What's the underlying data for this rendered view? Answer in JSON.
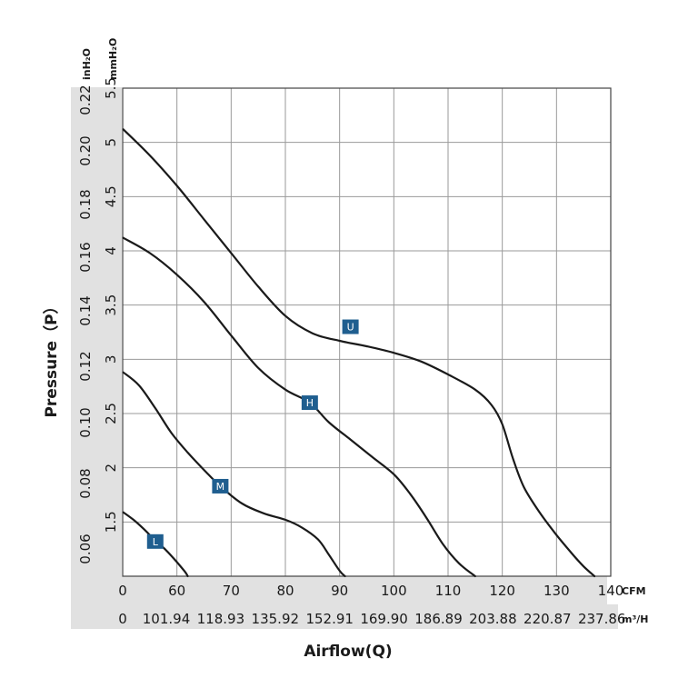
{
  "chart_data": {
    "type": "line",
    "xlabel": "Airflow(Q)",
    "ylabel": "Pressure（P）",
    "x_unit_primary": "CFM",
    "x_unit_secondary": "m³/H",
    "y_unit_outer": "inH₂O",
    "y_unit_inner": "mmH₂O",
    "x_range_cfm": [
      50,
      140
    ],
    "y_range_mmh2o": [
      1.0,
      5.5
    ],
    "grid": true,
    "x_ticks_primary": [
      "0",
      "60",
      "70",
      "80",
      "90",
      "100",
      "110",
      "120",
      "130",
      "140"
    ],
    "x_ticks_secondary": [
      "0",
      "101.94",
      "118.93",
      "135.92",
      "152.91",
      "169.90",
      "186.89",
      "203.88",
      "220.87",
      "237.86"
    ],
    "y_ticks_inner": [
      "1.5",
      "2",
      "2.5",
      "3",
      "3.5",
      "4",
      "4.5",
      "5",
      "5.5"
    ],
    "y_ticks_outer": [
      "0.06",
      "0.08",
      "0.10",
      "0.12",
      "0.14",
      "0.16",
      "0.18",
      "0.20",
      "0.22"
    ],
    "series": [
      {
        "name": "U",
        "color": "#1a1a1a",
        "marker_at": [
          92,
          3.3
        ],
        "points": [
          [
            50.1,
            5.12
          ],
          [
            55,
            4.88
          ],
          [
            60,
            4.6
          ],
          [
            65,
            4.29
          ],
          [
            70,
            3.98
          ],
          [
            75,
            3.67
          ],
          [
            80,
            3.4
          ],
          [
            85,
            3.24
          ],
          [
            90,
            3.17
          ],
          [
            95,
            3.12
          ],
          [
            100,
            3.06
          ],
          [
            105,
            2.98
          ],
          [
            110,
            2.86
          ],
          [
            115,
            2.72
          ],
          [
            118,
            2.58
          ],
          [
            120,
            2.4
          ],
          [
            122,
            2.08
          ],
          [
            124,
            1.82
          ],
          [
            127,
            1.58
          ],
          [
            130,
            1.38
          ],
          [
            133,
            1.2
          ],
          [
            135,
            1.09
          ],
          [
            137,
            1.0
          ]
        ]
      },
      {
        "name": "H",
        "color": "#1a1a1a",
        "marker_at": [
          84.5,
          2.6
        ],
        "points": [
          [
            50.1,
            4.12
          ],
          [
            55,
            3.98
          ],
          [
            60,
            3.78
          ],
          [
            65,
            3.53
          ],
          [
            70,
            3.22
          ],
          [
            75,
            2.92
          ],
          [
            80,
            2.72
          ],
          [
            84.5,
            2.6
          ],
          [
            88,
            2.42
          ],
          [
            92,
            2.26
          ],
          [
            96,
            2.1
          ],
          [
            100,
            1.94
          ],
          [
            103,
            1.76
          ],
          [
            106,
            1.54
          ],
          [
            109,
            1.3
          ],
          [
            112,
            1.12
          ],
          [
            115,
            1.0
          ]
        ]
      },
      {
        "name": "M",
        "color": "#1a1a1a",
        "marker_at": [
          68,
          1.83
        ],
        "points": [
          [
            50.1,
            2.88
          ],
          [
            53,
            2.76
          ],
          [
            56,
            2.55
          ],
          [
            59,
            2.32
          ],
          [
            62,
            2.14
          ],
          [
            65,
            1.98
          ],
          [
            68,
            1.83
          ],
          [
            72,
            1.67
          ],
          [
            76,
            1.58
          ],
          [
            80,
            1.52
          ],
          [
            83,
            1.45
          ],
          [
            86,
            1.34
          ],
          [
            88,
            1.2
          ],
          [
            90,
            1.05
          ],
          [
            91,
            1.0
          ]
        ]
      },
      {
        "name": "L",
        "color": "#1a1a1a",
        "marker_at": [
          56,
          1.32
        ],
        "points": [
          [
            50.1,
            1.59
          ],
          [
            52,
            1.52
          ],
          [
            54,
            1.43
          ],
          [
            56,
            1.33
          ],
          [
            58,
            1.24
          ],
          [
            60,
            1.13
          ],
          [
            61.5,
            1.04
          ],
          [
            62,
            1.0
          ]
        ]
      }
    ]
  },
  "colors": {
    "marker_fill": "#1f5e8f",
    "band": "#e1e1e1",
    "grid": "#9a9a9a",
    "frame": "#444444",
    "curve": "#1a1a1a"
  }
}
